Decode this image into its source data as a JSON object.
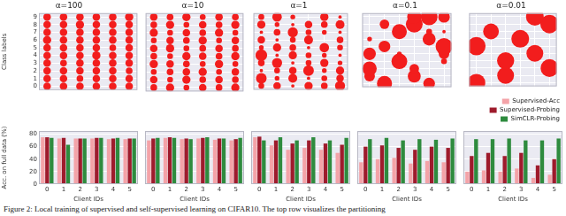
{
  "caption": "Figure 2: Local training of supervised and self-supervised learning on CIFAR10. The top row visualizes the partitioning",
  "chart_data": [
    {
      "type": "bubble",
      "title": "α=100",
      "ylabel": "Class labels",
      "color": "#f21d1d",
      "grid": true,
      "tick_labels": "y",
      "xlim": [
        -0.5,
        5.5
      ],
      "xticks": [
        0,
        1,
        2,
        3,
        4,
        5
      ],
      "ylim": [
        -0.5,
        9.5
      ],
      "yticks": [
        0,
        1,
        2,
        3,
        4,
        5,
        6,
        7,
        8,
        9
      ],
      "sizes": [
        [
          5,
          5,
          5,
          5,
          5,
          5
        ],
        [
          5,
          5,
          4,
          5,
          5,
          5
        ],
        [
          5,
          5,
          5,
          5,
          5,
          4
        ],
        [
          5,
          4,
          5,
          5,
          5,
          5
        ],
        [
          5,
          5,
          5,
          6,
          5,
          5
        ],
        [
          5,
          5,
          5,
          5,
          4,
          5
        ],
        [
          6,
          5,
          5,
          5,
          5,
          5
        ],
        [
          5,
          5,
          5,
          5,
          5,
          5
        ],
        [
          5,
          5,
          6,
          5,
          5,
          5
        ],
        [
          5,
          5,
          5,
          5,
          5,
          6
        ]
      ]
    },
    {
      "type": "bubble",
      "title": "α=10",
      "color": "#f21d1d",
      "grid": true,
      "tick_labels": false,
      "xlim": [
        -0.5,
        5.5
      ],
      "xticks": [
        0,
        1,
        2,
        3,
        4,
        5
      ],
      "ylim": [
        -0.5,
        9.5
      ],
      "yticks": [
        0,
        1,
        2,
        3,
        4,
        5,
        6,
        7,
        8,
        9
      ],
      "sizes": [
        [
          4,
          6,
          3,
          5,
          4,
          6
        ],
        [
          5,
          3,
          6,
          4,
          5,
          4
        ],
        [
          3,
          4,
          5,
          6,
          3,
          5
        ],
        [
          6,
          5,
          4,
          3,
          6,
          3
        ],
        [
          4,
          3,
          6,
          5,
          4,
          6
        ],
        [
          5,
          6,
          3,
          4,
          5,
          4
        ],
        [
          3,
          5,
          4,
          6,
          3,
          5
        ],
        [
          6,
          3,
          5,
          4,
          6,
          3
        ],
        [
          4,
          6,
          3,
          5,
          4,
          6
        ],
        [
          5,
          4,
          6,
          3,
          5,
          4
        ]
      ]
    },
    {
      "type": "bubble",
      "title": "α=1",
      "color": "#f21d1d",
      "grid": true,
      "tick_labels": false,
      "xlim": [
        -0.5,
        5.5
      ],
      "xticks": [
        0,
        1,
        2,
        3,
        4,
        5
      ],
      "ylim": [
        -0.5,
        9.5
      ],
      "yticks": [
        0,
        1,
        2,
        3,
        4,
        5,
        6,
        7,
        8,
        9
      ],
      "sizes": [
        [
          3,
          5,
          1,
          6,
          4,
          9
        ],
        [
          10,
          2,
          7,
          1,
          3,
          5
        ],
        [
          1,
          3,
          5,
          10,
          2,
          6
        ],
        [
          4,
          9,
          1,
          3,
          6,
          2
        ],
        [
          12,
          1,
          6,
          3,
          2,
          1
        ],
        [
          2,
          6,
          4,
          1,
          8,
          3
        ],
        [
          5,
          1,
          3,
          7,
          0,
          4
        ],
        [
          1,
          4,
          9,
          3,
          2,
          1
        ],
        [
          6,
          2,
          1,
          5,
          4,
          7
        ],
        [
          3,
          8,
          2,
          0,
          6,
          1
        ]
      ]
    },
    {
      "type": "bubble",
      "title": "α=0.1",
      "color": "#f21d1d",
      "grid": true,
      "tick_labels": false,
      "xlim": [
        -0.5,
        5.5
      ],
      "xticks": [
        0,
        1,
        2,
        3,
        4,
        5
      ],
      "ylim": [
        -0.5,
        9.5
      ],
      "yticks": [
        0,
        1,
        2,
        3,
        4,
        5,
        6,
        7,
        8,
        9
      ],
      "sizes": [
        [
          0,
          20,
          0,
          0,
          12,
          0
        ],
        [
          10,
          0,
          0,
          15,
          0,
          0
        ],
        [
          18,
          0,
          0,
          8,
          0,
          0
        ],
        [
          0,
          0,
          22,
          0,
          0,
          3
        ],
        [
          14,
          0,
          2,
          0,
          0,
          10
        ],
        [
          0,
          12,
          0,
          0,
          0,
          25
        ],
        [
          2,
          0,
          0,
          0,
          15,
          0
        ],
        [
          0,
          0,
          20,
          0,
          3,
          1
        ],
        [
          0,
          8,
          0,
          25,
          0,
          0
        ],
        [
          0,
          0,
          0,
          18,
          25,
          12
        ]
      ]
    },
    {
      "type": "bubble",
      "title": "α=0.01",
      "color": "#f21d1d",
      "grid": true,
      "tick_labels": false,
      "xlim": [
        -0.5,
        5.5
      ],
      "xticks": [
        0,
        1,
        2,
        3,
        4,
        5
      ],
      "ylim": [
        -0.5,
        9.5
      ],
      "yticks": [
        0,
        1,
        2,
        3,
        4,
        5,
        6,
        7,
        8,
        9
      ],
      "sizes": [
        [
          28,
          0,
          0,
          0,
          0,
          0
        ],
        [
          0,
          0,
          25,
          0,
          0,
          0
        ],
        [
          0,
          0,
          0,
          0,
          0,
          28
        ],
        [
          0,
          0,
          26,
          0,
          0,
          0
        ],
        [
          0,
          0,
          0,
          0,
          25,
          0
        ],
        [
          30,
          0,
          0,
          0,
          0,
          0
        ],
        [
          0,
          0,
          0,
          28,
          0,
          0
        ],
        [
          0,
          22,
          0,
          0,
          0,
          0
        ],
        [
          0,
          0,
          0,
          0,
          0,
          30
        ],
        [
          0,
          0,
          0,
          0,
          28,
          0
        ]
      ]
    },
    {
      "type": "bar",
      "xlabel": "Client IDs",
      "ylabel": "Acc. on full data (%)",
      "grid": true,
      "tick_labels": true,
      "categories": [
        "0",
        "1",
        "2",
        "3",
        "4",
        "5"
      ],
      "ylim": [
        0,
        85
      ],
      "yticks": [
        0,
        20,
        40,
        60,
        80
      ],
      "series": [
        {
          "name": "Supervised-Acc",
          "color": "#f4a3a8",
          "values": [
            75,
            73,
            73,
            73,
            72,
            72
          ]
        },
        {
          "name": "Supervised-Probing",
          "color": "#9e1b2c",
          "values": [
            75,
            74,
            73,
            74,
            73,
            73
          ]
        },
        {
          "name": "SimCLR-Probing",
          "color": "#2e8b3e",
          "values": [
            74,
            63,
            73,
            74,
            74,
            73
          ]
        }
      ]
    },
    {
      "type": "bar",
      "xlabel": "Client IDs",
      "grid": true,
      "tick_labels": "x",
      "categories": [
        "0",
        "1",
        "2",
        "3",
        "4",
        "5"
      ],
      "ylim": [
        0,
        85
      ],
      "yticks": [
        0,
        20,
        40,
        60,
        80
      ],
      "series": [
        {
          "name": "Supervised-Acc",
          "color": "#f4a3a8",
          "values": [
            70,
            74,
            72,
            73,
            71,
            70
          ]
        },
        {
          "name": "Supervised-Probing",
          "color": "#9e1b2c",
          "values": [
            73,
            75,
            73,
            74,
            73,
            72
          ]
        },
        {
          "name": "SimCLR-Probing",
          "color": "#2e8b3e",
          "values": [
            74,
            74,
            72,
            75,
            73,
            74
          ]
        }
      ]
    },
    {
      "type": "bar",
      "xlabel": "Client IDs",
      "grid": true,
      "tick_labels": "x",
      "categories": [
        "0",
        "1",
        "2",
        "3",
        "4",
        "5"
      ],
      "ylim": [
        0,
        85
      ],
      "yticks": [
        0,
        20,
        40,
        60,
        80
      ],
      "series": [
        {
          "name": "Supervised-Acc",
          "color": "#f4a3a8",
          "values": [
            75,
            62,
            55,
            58,
            55,
            50
          ]
        },
        {
          "name": "Supervised-Probing",
          "color": "#9e1b2c",
          "values": [
            76,
            70,
            65,
            70,
            65,
            63
          ]
        },
        {
          "name": "SimCLR-Probing",
          "color": "#2e8b3e",
          "values": [
            70,
            75,
            70,
            75,
            70,
            74
          ]
        }
      ]
    },
    {
      "type": "bar",
      "xlabel": "Client IDs",
      "grid": true,
      "tick_labels": "x",
      "categories": [
        "0",
        "1",
        "2",
        "3",
        "4",
        "5"
      ],
      "ylim": [
        0,
        85
      ],
      "yticks": [
        0,
        20,
        40,
        60,
        80
      ],
      "series": [
        {
          "name": "Supervised-Acc",
          "color": "#f4a3a8",
          "values": [
            35,
            40,
            42,
            33,
            37,
            35
          ]
        },
        {
          "name": "Supervised-Probing",
          "color": "#9e1b2c",
          "values": [
            60,
            62,
            58,
            55,
            60,
            58
          ]
        },
        {
          "name": "SimCLR-Probing",
          "color": "#2e8b3e",
          "values": [
            72,
            74,
            70,
            72,
            71,
            73
          ]
        }
      ]
    },
    {
      "type": "bar",
      "xlabel": "Client IDs",
      "grid": true,
      "tick_labels": "x",
      "legend": "top",
      "categories": [
        "0",
        "1",
        "2",
        "3",
        "4",
        "5"
      ],
      "ylim": [
        0,
        85
      ],
      "yticks": [
        0,
        20,
        40,
        60,
        80
      ],
      "series": [
        {
          "name": "Supervised-Acc",
          "color": "#f4a3a8",
          "values": [
            20,
            22,
            20,
            25,
            10,
            15
          ]
        },
        {
          "name": "Supervised-Probing",
          "color": "#9e1b2c",
          "values": [
            45,
            50,
            45,
            50,
            30,
            40
          ]
        },
        {
          "name": "SimCLR-Probing",
          "color": "#2e8b3e",
          "values": [
            72,
            72,
            73,
            70,
            70,
            73
          ]
        }
      ]
    }
  ]
}
